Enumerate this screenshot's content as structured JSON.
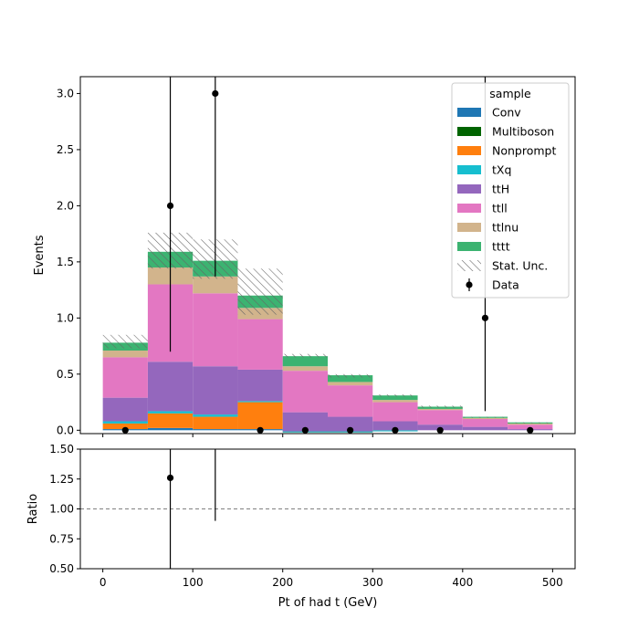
{
  "chart_data": [
    {
      "type": "bar",
      "stacked": true,
      "ylabel": "Events",
      "xlim": [
        -25,
        525
      ],
      "ylim": [
        -0.03,
        3.15
      ],
      "yticks": [
        0.0,
        0.5,
        1.0,
        1.5,
        2.0,
        2.5,
        3.0
      ],
      "ytick_labels": [
        "0.0",
        "0.5",
        "1.0",
        "1.5",
        "2.0",
        "2.5",
        "3.0"
      ],
      "bin_edges": [
        0,
        50,
        100,
        150,
        200,
        250,
        300,
        350,
        400,
        450,
        500
      ],
      "series": [
        {
          "name": "Conv",
          "color": "#1f77b4",
          "values": [
            0.01,
            0.02,
            0.01,
            0.01,
            -0.01,
            0.0,
            0.0,
            0.0,
            0.0,
            0.0
          ]
        },
        {
          "name": "Multiboson",
          "color": "#006400",
          "values": [
            0.0,
            0.0,
            0.0,
            0.0,
            0.0,
            0.0,
            0.0,
            0.0,
            0.0,
            0.0
          ]
        },
        {
          "name": "Nonprompt",
          "color": "#ff7f0e",
          "values": [
            0.05,
            0.13,
            0.11,
            0.24,
            -0.01,
            -0.02,
            -0.01,
            0.0,
            0.0,
            0.0
          ]
        },
        {
          "name": "tXq",
          "color": "#17becf",
          "values": [
            0.02,
            0.02,
            0.02,
            0.01,
            0.01,
            0.01,
            0.01,
            0.0,
            0.0,
            0.0
          ]
        },
        {
          "name": "ttH",
          "color": "#9467bd",
          "values": [
            0.21,
            0.44,
            0.43,
            0.28,
            0.17,
            0.13,
            0.08,
            0.05,
            0.03,
            0.01
          ]
        },
        {
          "name": "ttll",
          "color": "#e377c2",
          "values": [
            0.36,
            0.69,
            0.65,
            0.45,
            0.37,
            0.28,
            0.17,
            0.13,
            0.07,
            0.04
          ]
        },
        {
          "name": "ttlnu",
          "color": "#d2b48c",
          "values": [
            0.06,
            0.15,
            0.15,
            0.1,
            0.04,
            0.03,
            0.02,
            0.01,
            0.01,
            0.01
          ]
        },
        {
          "name": "tttt",
          "color": "#3cb371",
          "values": [
            0.07,
            0.14,
            0.14,
            0.11,
            0.09,
            0.06,
            0.04,
            0.02,
            0.01,
            0.01
          ]
        }
      ],
      "stat_unc": {
        "name": "Stat. Unc.",
        "low": [
          0.73,
          1.44,
          1.35,
          1.03,
          0.65,
          0.47,
          0.3,
          0.2,
          0.11,
          0.06
        ],
        "high": [
          0.85,
          1.76,
          1.7,
          1.44,
          0.68,
          0.5,
          0.32,
          0.22,
          0.12,
          0.07
        ]
      },
      "data": {
        "name": "Data",
        "x": [
          25,
          75,
          125,
          175,
          225,
          275,
          325,
          375,
          425,
          475
        ],
        "y": [
          0,
          2,
          3,
          0,
          0,
          0,
          0,
          0,
          1,
          0
        ],
        "yerr_low": [
          0,
          1.3,
          1.63,
          0,
          0,
          0,
          0,
          0,
          0.83,
          0
        ],
        "yerr_high": [
          0,
          2.64,
          2.92,
          0,
          0,
          0,
          0,
          0,
          2.3,
          0
        ]
      },
      "legend": {
        "title": "sample",
        "position": "top-right"
      }
    },
    {
      "type": "scatter",
      "xlabel": "Pt of had t (GeV)",
      "ylabel": "Ratio",
      "xlim": [
        -25,
        525
      ],
      "ylim": [
        0.5,
        1.5
      ],
      "xticks": [
        0,
        100,
        200,
        300,
        400,
        500
      ],
      "xtick_labels": [
        "0",
        "100",
        "200",
        "300",
        "400",
        "500"
      ],
      "yticks": [
        0.5,
        0.75,
        1.0,
        1.25,
        1.5
      ],
      "ytick_labels": [
        "0.50",
        "0.75",
        "1.00",
        "1.25",
        "1.50"
      ],
      "reference_line": 1.0,
      "points": [
        {
          "x": 75,
          "y": 1.26,
          "err_low": 0.9,
          "err_high": 0.3
        }
      ],
      "bars_only": [
        {
          "x": 125,
          "low": 0.9,
          "high": 1.5
        }
      ]
    }
  ]
}
